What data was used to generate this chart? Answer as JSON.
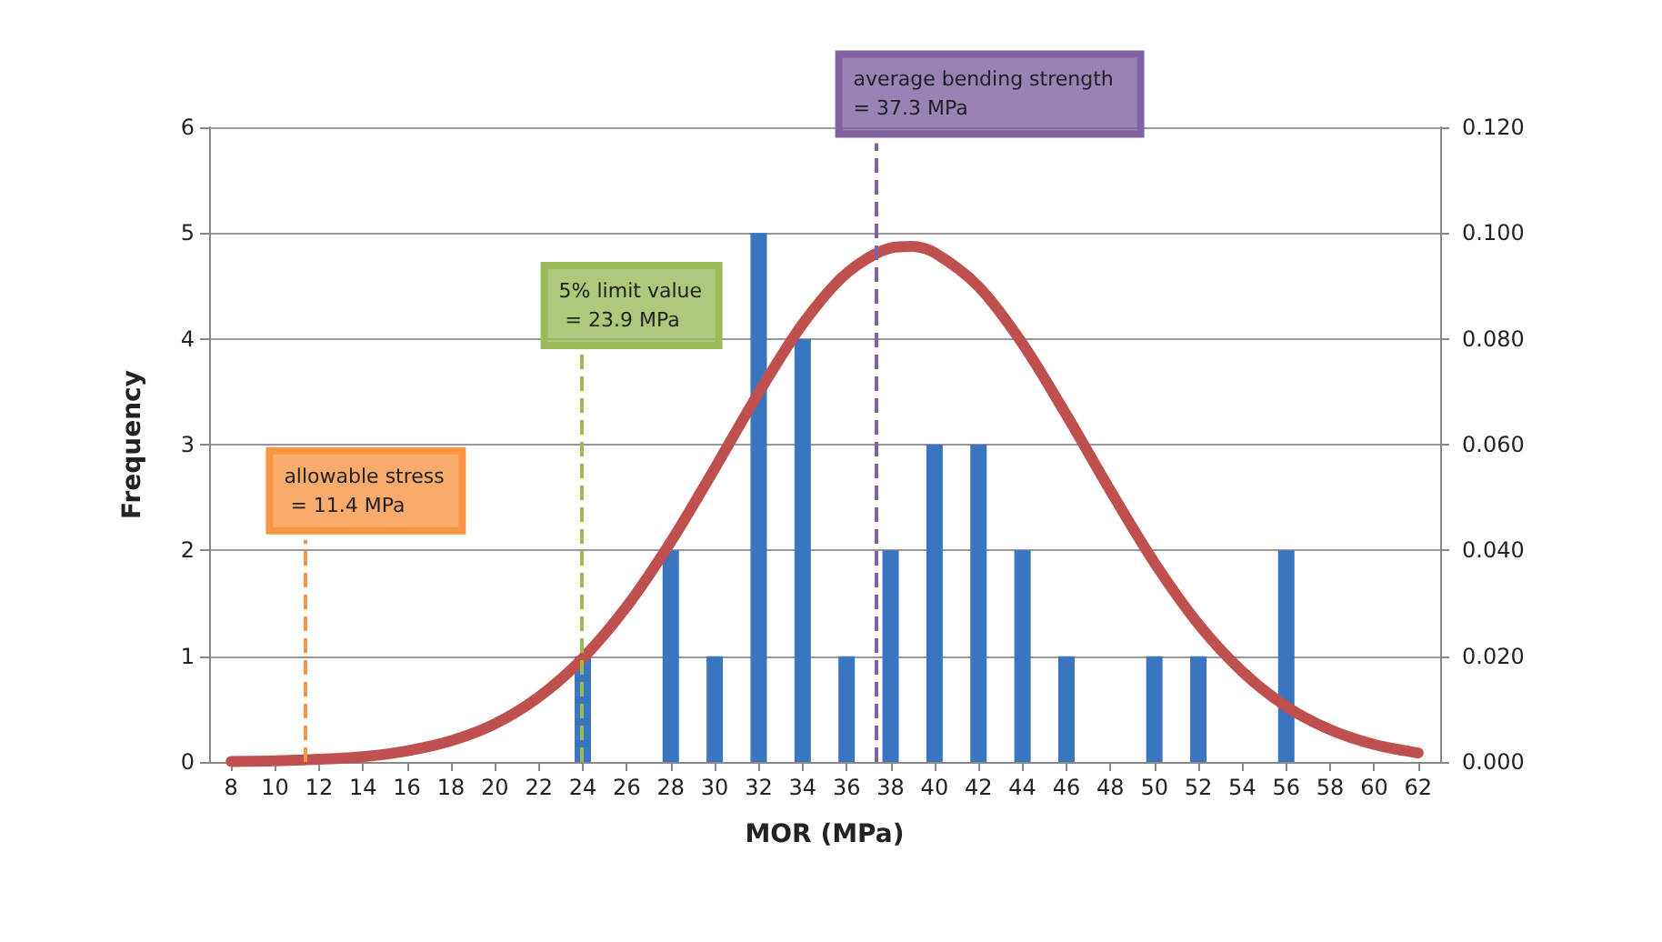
{
  "chart_data": {
    "type": "bar",
    "xlabel": "MOR (MPa)",
    "ylabel": "Frequency",
    "x": [
      24,
      28,
      30,
      32,
      34,
      36,
      38,
      40,
      42,
      44,
      46,
      50,
      52,
      56
    ],
    "series": [
      {
        "color": "#3a75c0",
        "values": [
          1,
          2,
          1,
          5,
          4,
          1,
          2,
          3,
          3,
          2,
          1,
          1,
          1,
          2
        ]
      },
      {
        "type": "line",
        "axis": "y2",
        "color": "#c0504d",
        "x": [
          8,
          10,
          12,
          14,
          16,
          18,
          20,
          22,
          24,
          26,
          28,
          30,
          32,
          34,
          36,
          38,
          39,
          40,
          42,
          44,
          46,
          48,
          50,
          52,
          54,
          56,
          58,
          60,
          62
        ],
        "values": [
          0.0001,
          0.0002,
          0.0005,
          0.001,
          0.0021,
          0.004,
          0.0072,
          0.0123,
          0.0196,
          0.0294,
          0.0416,
          0.0555,
          0.0698,
          0.0828,
          0.0924,
          0.0972,
          0.0975,
          0.0963,
          0.0899,
          0.0791,
          0.0656,
          0.0513,
          0.0377,
          0.0261,
          0.0171,
          0.0105,
          0.0061,
          0.0033,
          0.0017
        ]
      }
    ],
    "xlim": [
      7,
      63
    ],
    "xticks": [
      8,
      10,
      12,
      14,
      16,
      18,
      20,
      22,
      24,
      26,
      28,
      30,
      32,
      34,
      36,
      38,
      40,
      42,
      44,
      46,
      48,
      50,
      52,
      54,
      56,
      58,
      60,
      62
    ],
    "ylim": [
      0,
      6
    ],
    "yticks": [
      0,
      1,
      2,
      3,
      4,
      5,
      6
    ],
    "y2lim": [
      0,
      0.12
    ],
    "y2ticks": [
      {
        "value": 0,
        "label": "0.000"
      },
      {
        "value": 0.02,
        "label": "0.020"
      },
      {
        "value": 0.04,
        "label": "0.040"
      },
      {
        "value": 0.06,
        "label": "0.060"
      },
      {
        "value": 0.08,
        "label": "0.080"
      },
      {
        "value": 0.1,
        "label": "0.100"
      },
      {
        "value": 0.12,
        "label": "0.120"
      }
    ],
    "ref_lines": [
      {
        "axis": "x",
        "value": 11.4,
        "label": "allowable stress = 11.4 MPa",
        "color": "#f79646",
        "line_style": "dashed"
      },
      {
        "axis": "x",
        "value": 23.9,
        "label": "5% limit value = 23.9 MPa",
        "color": "#9bbb59",
        "line_style": "dashed"
      },
      {
        "axis": "x",
        "value": 37.3,
        "label": "average bending strength = 37.3 MPa",
        "color": "#8064a2",
        "line_style": "dashed"
      }
    ],
    "grid": "y"
  }
}
